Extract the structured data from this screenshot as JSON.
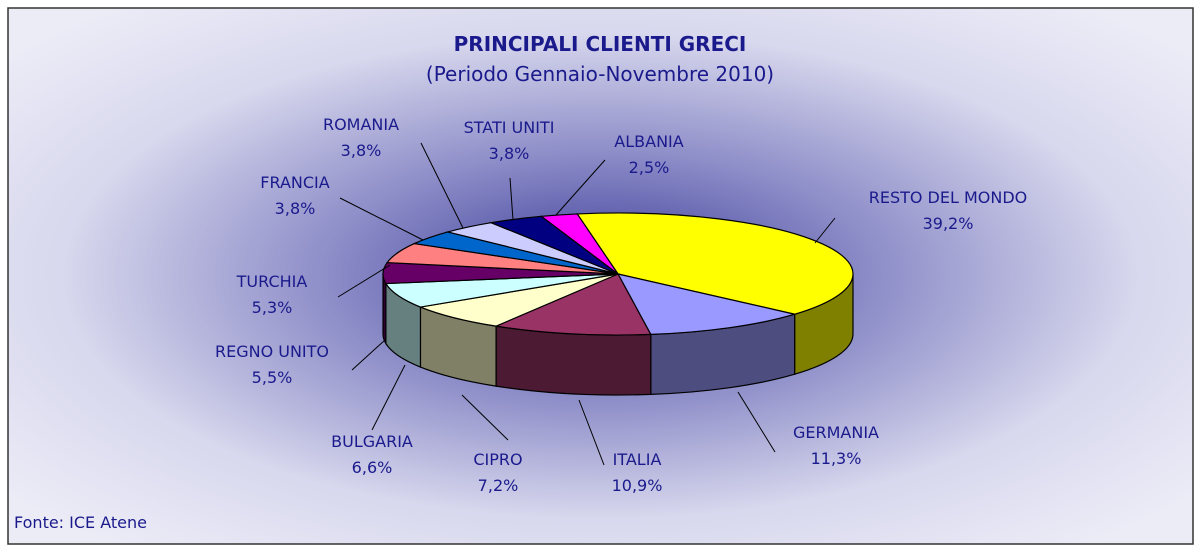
{
  "chart_data": {
    "type": "pie3d",
    "title": "PRINCIPALI CLIENTI GRECI",
    "subtitle": "(Periodo Gennaio-Novembre 2010)",
    "source": "Fonte: ICE Atene",
    "categories": [
      "RESTO DEL MONDO",
      "GERMANIA",
      "ITALIA",
      "CIPRO",
      "BULGARIA",
      "REGNO UNITO",
      "TURCHIA",
      "FRANCIA",
      "ROMANIA",
      "STATI UNITI",
      "ALBANIA"
    ],
    "values": [
      39.2,
      11.3,
      10.9,
      7.2,
      6.6,
      5.5,
      5.3,
      3.8,
      3.8,
      3.8,
      2.5
    ],
    "value_labels": [
      "39,2%",
      "11,3%",
      "10,9%",
      "7,2%",
      "6,6%",
      "5,5%",
      "5,3%",
      "3,8%",
      "3,8%",
      "3,8%",
      "2,5%"
    ],
    "colors": [
      "#ffff00",
      "#9999ff",
      "#993366",
      "#ffffcc",
      "#ccffff",
      "#660066",
      "#ff8080",
      "#0066cc",
      "#ccccff",
      "#000080",
      "#ff00ff"
    ]
  }
}
